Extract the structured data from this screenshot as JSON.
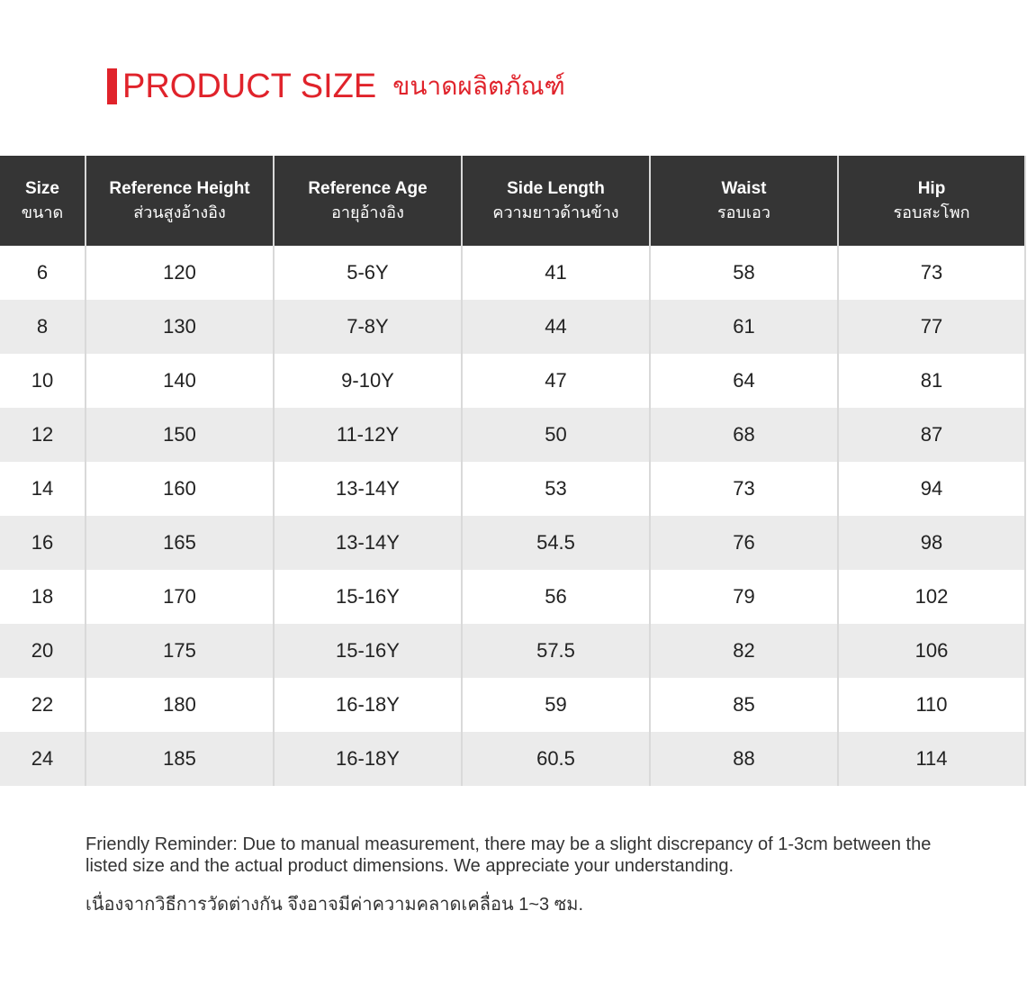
{
  "title": {
    "en": "PRODUCT SIZE",
    "th": "ขนาดผลิตภัณฑ์",
    "color": "#e0232b"
  },
  "table": {
    "headers": [
      {
        "en": "Size",
        "th": "ขนาด"
      },
      {
        "en": "Reference Height",
        "th": "ส่วนสูงอ้างอิง"
      },
      {
        "en": "Reference Age",
        "th": "อายุอ้างอิง"
      },
      {
        "en": "Side Length",
        "th": "ความยาวด้านข้าง"
      },
      {
        "en": "Waist",
        "th": "รอบเอว"
      },
      {
        "en": "Hip",
        "th": "รอบสะโพก"
      }
    ],
    "rows": [
      [
        "6",
        "120",
        "5-6Y",
        "41",
        "58",
        "73"
      ],
      [
        "8",
        "130",
        "7-8Y",
        "44",
        "61",
        "77"
      ],
      [
        "10",
        "140",
        "9-10Y",
        "47",
        "64",
        "81"
      ],
      [
        "12",
        "150",
        "11-12Y",
        "50",
        "68",
        "87"
      ],
      [
        "14",
        "160",
        "13-14Y",
        "53",
        "73",
        "94"
      ],
      [
        "16",
        "165",
        "13-14Y",
        "54.5",
        "76",
        "98"
      ],
      [
        "18",
        "170",
        "15-16Y",
        "56",
        "79",
        "102"
      ],
      [
        "20",
        "175",
        "15-16Y",
        "57.5",
        "82",
        "106"
      ],
      [
        "22",
        "180",
        "16-18Y",
        "59",
        "85",
        "110"
      ],
      [
        "24",
        "185",
        "16-18Y",
        "60.5",
        "88",
        "114"
      ]
    ]
  },
  "note": {
    "en": "Friendly Reminder: Due to manual measurement, there may be a slight discrepancy of 1-3cm be­tween the listed size and the actual product dimensions. We appreciate your understanding.",
    "th": "เนื่องจากวิธีการวัดต่างกัน จึงอาจมีค่าความคลาดเคลื่อน 1~3 ซม."
  }
}
